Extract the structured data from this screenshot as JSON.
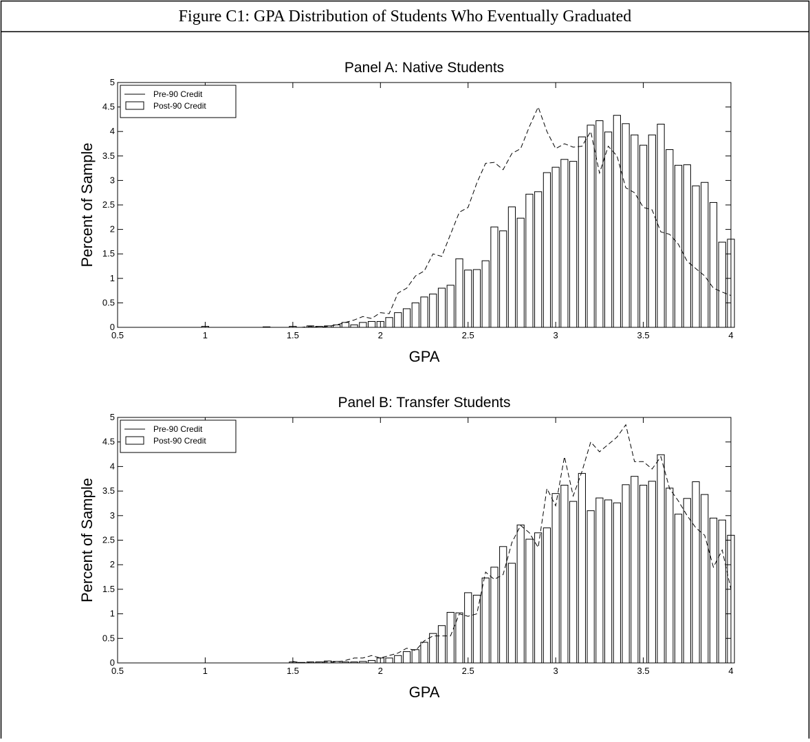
{
  "figure_title": "Figure C1:  GPA Distribution of Students Who Eventually Graduated",
  "chart_data": [
    {
      "type": "bar",
      "title": "Panel A: Native Students",
      "x_label": "GPA",
      "y_label": "Percent of Sample",
      "x": [
        1,
        1.05,
        1.1,
        1.15,
        1.2,
        1.25,
        1.3,
        1.35,
        1.4,
        1.45,
        1.5,
        1.55,
        1.6,
        1.65,
        1.7,
        1.75,
        1.8,
        1.85,
        1.9,
        1.95,
        2,
        2.05,
        2.1,
        2.15,
        2.2,
        2.25,
        2.3,
        2.35,
        2.4,
        2.45,
        2.5,
        2.55,
        2.6,
        2.65,
        2.7,
        2.75,
        2.8,
        2.85,
        2.9,
        2.95,
        3,
        3.05,
        3.1,
        3.15,
        3.2,
        3.25,
        3.3,
        3.35,
        3.4,
        3.45,
        3.5,
        3.55,
        3.6,
        3.65,
        3.7,
        3.75,
        3.8,
        3.85,
        3.9,
        3.95,
        4
      ],
      "series": [
        {
          "name": "Pre-90 Credit",
          "type": "line",
          "color": "#000000",
          "values": [
            null,
            null,
            null,
            null,
            null,
            null,
            null,
            null,
            null,
            null,
            0,
            0,
            0.02,
            0,
            0.02,
            0.05,
            0.1,
            0.15,
            0.22,
            0.18,
            0.3,
            0.28,
            0.7,
            0.8,
            1.05,
            1.15,
            1.5,
            1.45,
            1.9,
            2.35,
            2.45,
            2.95,
            3.35,
            3.37,
            3.22,
            3.55,
            3.65,
            4.1,
            4.5,
            4.0,
            3.65,
            3.75,
            3.68,
            3.7,
            4.0,
            3.15,
            3.7,
            3.5,
            2.85,
            2.75,
            2.45,
            2.4,
            1.95,
            1.9,
            1.7,
            1.35,
            1.2,
            1.05,
            0.8,
            0.72,
            0.65
          ]
        },
        {
          "name": "Post-90 Credit",
          "type": "bar",
          "color": "#ffffff",
          "values": [
            0.02,
            0,
            0,
            0,
            0,
            0,
            0,
            0.01,
            0,
            0,
            0.02,
            0,
            0.03,
            0.02,
            0.03,
            0.05,
            0.1,
            0.05,
            0.1,
            0.12,
            0.12,
            0.2,
            0.3,
            0.38,
            0.5,
            0.62,
            0.68,
            0.8,
            0.86,
            1.4,
            1.17,
            1.18,
            1.36,
            2.05,
            1.97,
            2.46,
            2.23,
            2.72,
            2.77,
            3.16,
            3.27,
            3.43,
            3.39,
            3.89,
            4.13,
            4.22,
            3.99,
            4.33,
            4.16,
            3.93,
            3.72,
            3.93,
            4.15,
            3.63,
            3.31,
            3.32,
            2.89,
            2.96,
            2.55,
            1.74,
            1.8
          ]
        }
      ],
      "xlim": [
        0.5,
        4
      ],
      "ylim": [
        0,
        5
      ],
      "xticks": [
        0.5,
        1,
        1.5,
        2,
        2.5,
        3,
        3.5,
        4
      ],
      "yticks": [
        0,
        0.5,
        1,
        1.5,
        2,
        2.5,
        3,
        3.5,
        4,
        4.5,
        5
      ],
      "legend": "upper left",
      "grid": false
    },
    {
      "type": "bar",
      "title": "Panel B: Transfer Students",
      "x_label": "GPA",
      "y_label": "Percent of Sample",
      "x": [
        1,
        1.05,
        1.1,
        1.15,
        1.2,
        1.25,
        1.3,
        1.35,
        1.4,
        1.45,
        1.5,
        1.55,
        1.6,
        1.65,
        1.7,
        1.75,
        1.8,
        1.85,
        1.9,
        1.95,
        2,
        2.05,
        2.1,
        2.15,
        2.2,
        2.25,
        2.3,
        2.35,
        2.4,
        2.45,
        2.5,
        2.55,
        2.6,
        2.65,
        2.7,
        2.75,
        2.8,
        2.85,
        2.9,
        2.95,
        3,
        3.05,
        3.1,
        3.15,
        3.2,
        3.25,
        3.3,
        3.35,
        3.4,
        3.45,
        3.5,
        3.55,
        3.6,
        3.65,
        3.7,
        3.75,
        3.8,
        3.85,
        3.9,
        3.95,
        4
      ],
      "series": [
        {
          "name": "Pre-90 Credit",
          "type": "line",
          "color": "#000000",
          "values": [
            null,
            null,
            null,
            null,
            null,
            null,
            null,
            null,
            null,
            null,
            0.03,
            0,
            0.02,
            0.02,
            0.02,
            0.02,
            0.05,
            0.1,
            0.1,
            0.15,
            0.1,
            0.15,
            0.2,
            0.3,
            0.25,
            0.45,
            0.55,
            0.55,
            0.55,
            1.0,
            0.95,
            1.0,
            1.85,
            1.7,
            1.8,
            2.45,
            2.8,
            2.65,
            2.35,
            3.55,
            3.2,
            4.2,
            3.4,
            3.9,
            4.5,
            4.3,
            4.45,
            4.6,
            4.85,
            4.1,
            4.1,
            3.95,
            4.2,
            3.55,
            3.3,
            3.0,
            2.75,
            2.6,
            1.95,
            2.3,
            1.5
          ]
        },
        {
          "name": "Post-90 Credit",
          "type": "bar",
          "color": "#ffffff",
          "values": [
            0,
            0,
            0,
            0,
            0,
            0,
            0,
            0,
            0,
            0,
            0.02,
            0.01,
            0.02,
            0.02,
            0.04,
            0.03,
            0.02,
            0.02,
            0.03,
            0.05,
            0.1,
            0.1,
            0.15,
            0.23,
            0.27,
            0.42,
            0.6,
            0.76,
            1.03,
            1.02,
            1.43,
            1.38,
            1.73,
            1.95,
            2.37,
            2.03,
            2.81,
            2.52,
            2.65,
            2.75,
            3.45,
            3.62,
            3.29,
            3.86,
            3.1,
            3.36,
            3.32,
            3.26,
            3.63,
            3.8,
            3.62,
            3.7,
            4.24,
            3.56,
            3.03,
            3.35,
            3.69,
            3.43,
            2.95,
            2.91,
            2.6
          ]
        }
      ],
      "xlim": [
        0.5,
        4
      ],
      "ylim": [
        0,
        5
      ],
      "xticks": [
        0.5,
        1,
        1.5,
        2,
        2.5,
        3,
        3.5,
        4
      ],
      "yticks": [
        0,
        0.5,
        1,
        1.5,
        2,
        2.5,
        3,
        3.5,
        4,
        4.5,
        5
      ],
      "legend": "upper left",
      "grid": false
    }
  ]
}
